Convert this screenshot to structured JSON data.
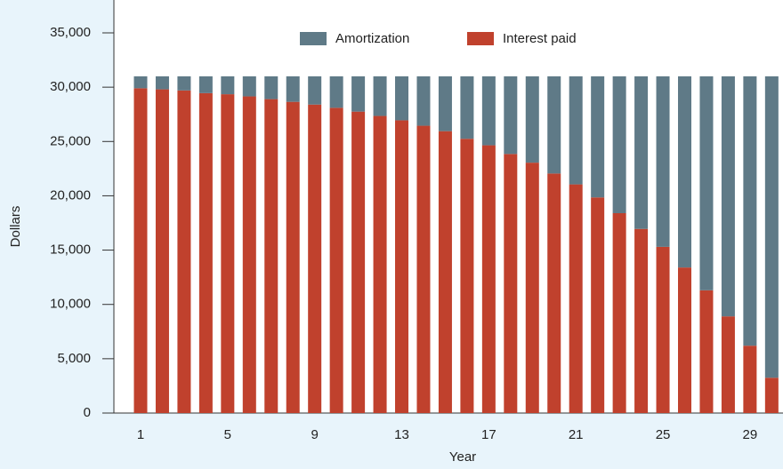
{
  "chart_data": {
    "type": "stacked_bar",
    "x_label": "Year",
    "y_label": "Dollars",
    "categories": [
      "1",
      null,
      null,
      null,
      "5",
      null,
      null,
      null,
      "9",
      null,
      null,
      null,
      "13",
      null,
      null,
      null,
      "17",
      null,
      null,
      null,
      "21",
      null,
      null,
      null,
      "25",
      null,
      null,
      null,
      "29",
      null
    ],
    "series": [
      {
        "name": "Interest paid",
        "color": "#c0412d",
        "values": [
          29900,
          29800,
          29700,
          29450,
          29350,
          29150,
          28900,
          28650,
          28400,
          28100,
          27750,
          27350,
          26950,
          26450,
          25950,
          25250,
          24650,
          23850,
          23050,
          22050,
          21050,
          19850,
          18400,
          16950,
          15300,
          13400,
          11300,
          8900,
          6200,
          3250
        ]
      },
      {
        "name": "Amortization",
        "color": "#5f7a87",
        "values": [
          1100,
          1200,
          1300,
          1550,
          1650,
          1850,
          2100,
          2350,
          2600,
          2900,
          3250,
          3650,
          4050,
          4550,
          5050,
          5750,
          6350,
          7150,
          7950,
          8950,
          9950,
          11150,
          12600,
          14050,
          15700,
          17600,
          19700,
          22100,
          24800,
          27750
        ]
      }
    ],
    "legend_order": [
      "Amortization",
      "Interest paid"
    ],
    "ylim": [
      0,
      35000
    ],
    "yticks": [
      0,
      {
        "value": 5000,
        "label": "5,000"
      },
      {
        "value": 10000,
        "label": "10,000"
      },
      {
        "value": 15000,
        "label": "15,000"
      },
      {
        "value": 20000,
        "label": "20,000"
      },
      {
        "value": 25000,
        "label": "25,000"
      },
      {
        "value": 30000,
        "label": "30,000"
      },
      {
        "value": 35000,
        "label": "35,000"
      }
    ],
    "grid": false
  }
}
